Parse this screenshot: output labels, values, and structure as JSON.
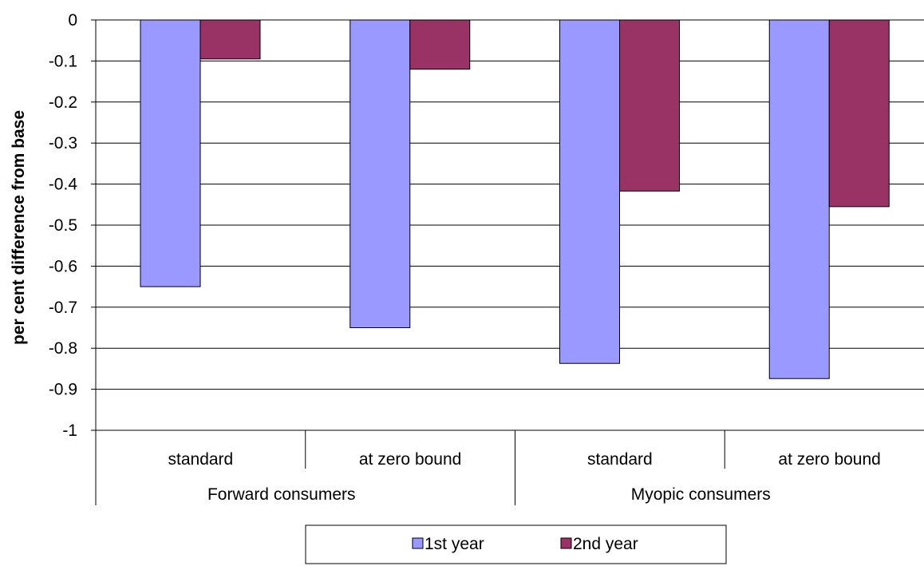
{
  "chart_data": {
    "type": "bar",
    "ylabel": "per cent difference from base",
    "xlabel": "",
    "ylim": [
      -1,
      0
    ],
    "yticks": [
      "0",
      "-0.1",
      "-0.2",
      "-0.3",
      "-0.4",
      "-0.5",
      "-0.6",
      "-0.7",
      "-0.8",
      "-0.9",
      "-1"
    ],
    "categories": [
      "standard",
      "at zero bound",
      "standard",
      "at zero bound"
    ],
    "groups": [
      "Forward consumers",
      "Myopic consumers"
    ],
    "series": [
      {
        "name": "1st year",
        "color": "#9999ff",
        "values": [
          -0.65,
          -0.75,
          -0.837,
          -0.874
        ]
      },
      {
        "name": "2nd year",
        "color": "#993366",
        "values": [
          -0.095,
          -0.12,
          -0.417,
          -0.455
        ]
      }
    ],
    "grid": true,
    "legend_position": "bottom"
  }
}
